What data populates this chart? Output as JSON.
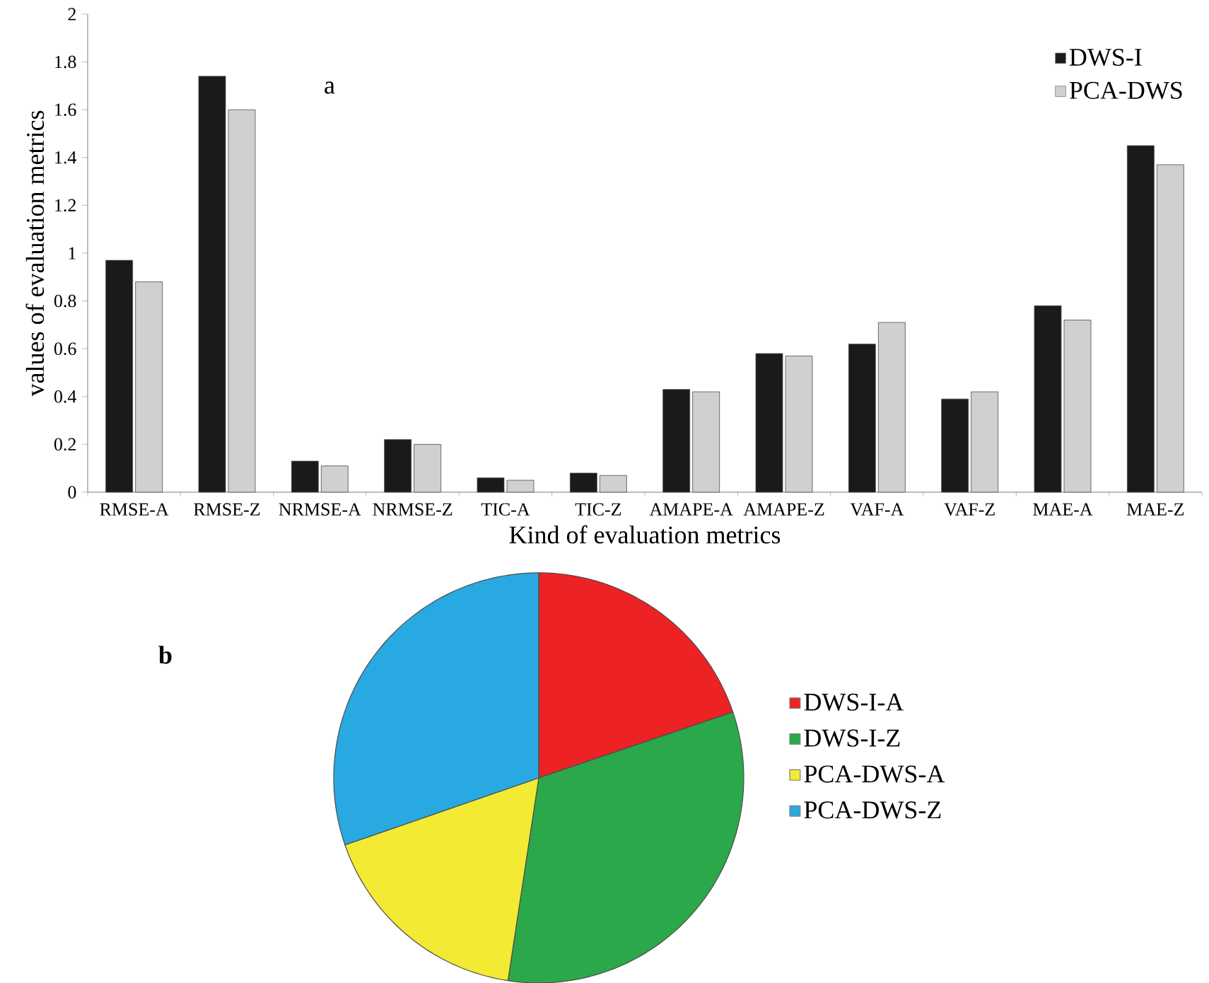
{
  "chart_data": [
    {
      "type": "bar",
      "xlabel": "Kind of evaluation metrics",
      "ylabel": "values of evaluation metrics",
      "categories": [
        "RMSE-A",
        "RMSE-Z",
        "NRMSE-A",
        "NRMSE-Z",
        "TIC-A",
        "TIC-Z",
        "AMAPE-A",
        "AMAPE-Z",
        "VAF-A",
        "VAF-Z",
        "MAE-A",
        "MAE-Z"
      ],
      "series": [
        {
          "name": "DWS-I",
          "color": "#1a1a1a",
          "values": [
            0.97,
            1.74,
            0.13,
            0.22,
            0.06,
            0.08,
            0.43,
            0.58,
            0.62,
            0.39,
            0.78,
            1.45
          ]
        },
        {
          "name": "PCA-DWS",
          "color": "#d0d0d0",
          "values": [
            0.88,
            1.6,
            0.11,
            0.2,
            0.05,
            0.07,
            0.42,
            0.57,
            0.71,
            0.42,
            0.72,
            1.37
          ]
        }
      ],
      "ylim": [
        0,
        2
      ],
      "yticks": [
        0,
        0.2,
        0.4,
        0.6,
        0.8,
        1,
        1.2,
        1.4,
        1.6,
        1.8,
        2
      ],
      "legend": "top right",
      "annotations": [
        "a"
      ]
    },
    {
      "type": "pie",
      "categories": [
        "DWS-I-A",
        "DWS-I-Z",
        "PCA-DWS-A",
        "PCA-DWS-Z"
      ],
      "values": [
        19.8,
        32.6,
        17.3,
        30.3
      ],
      "colors": [
        "#ed2224",
        "#2aa84a",
        "#f2ea33",
        "#29a9e1"
      ],
      "legend": "right",
      "annotations": [
        "b"
      ]
    }
  ]
}
